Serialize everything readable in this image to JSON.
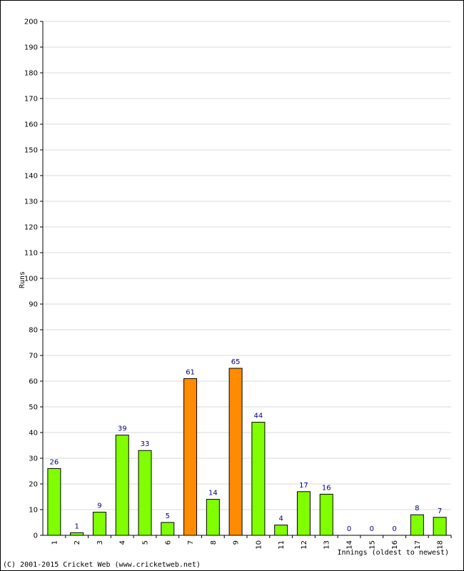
{
  "chart_data": {
    "type": "bar",
    "title": "",
    "xlabel": "Innings (oldest to newest)",
    "ylabel": "Runs",
    "ylim": [
      0,
      200
    ],
    "yticks": [
      0,
      10,
      20,
      30,
      40,
      50,
      60,
      70,
      80,
      90,
      100,
      110,
      120,
      130,
      140,
      150,
      160,
      170,
      180,
      190,
      200
    ],
    "grid": true,
    "categories": [
      "1",
      "2",
      "3",
      "4",
      "5",
      "6",
      "7",
      "8",
      "9",
      "10",
      "11",
      "12",
      "13",
      "14",
      "15",
      "16",
      "17",
      "18"
    ],
    "values": [
      26,
      1,
      9,
      39,
      33,
      5,
      61,
      14,
      65,
      44,
      4,
      17,
      16,
      0,
      0,
      0,
      8,
      7
    ],
    "value_labels": [
      "26",
      "1",
      "9",
      "39",
      "33",
      "5",
      "61",
      "14",
      "65",
      "44",
      "4",
      "17",
      "16",
      "0",
      "0",
      "0",
      "8",
      "7"
    ],
    "highlight_indices": [
      6,
      8
    ],
    "colors": {
      "bar": "#80ff00",
      "highlight": "#ff8c00",
      "bar_border": "#000000",
      "grid": "#d8d8d8",
      "data_label": "#000080"
    }
  },
  "footer": {
    "copyright": "(C) 2001-2015 Cricket Web (www.cricketweb.net)"
  }
}
